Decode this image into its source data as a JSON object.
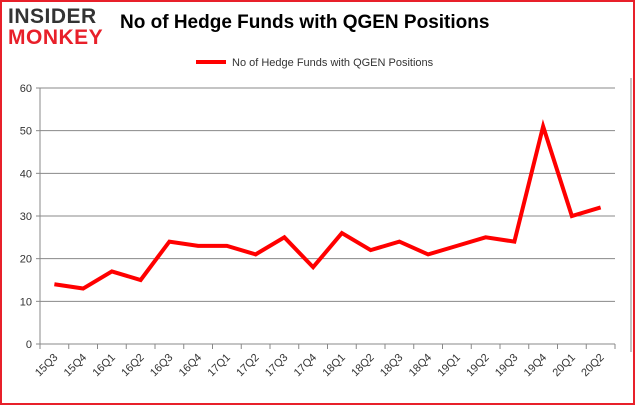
{
  "logo": {
    "line1": "INSIDER",
    "line2": "MONKEY"
  },
  "chart_data": {
    "type": "line",
    "title": "No of Hedge Funds with QGEN Positions",
    "categories": [
      "15Q3",
      "15Q4",
      "16Q1",
      "16Q2",
      "16Q3",
      "16Q4",
      "17Q1",
      "17Q2",
      "17Q3",
      "17Q4",
      "18Q1",
      "18Q2",
      "18Q3",
      "18Q4",
      "19Q1",
      "19Q2",
      "19Q3",
      "19Q4",
      "20Q1",
      "20Q2"
    ],
    "series": [
      {
        "name": "No of Hedge Funds with QGEN Positions",
        "values": [
          14,
          13,
          17,
          15,
          24,
          23,
          23,
          21,
          25,
          18,
          26,
          22,
          24,
          21,
          23,
          25,
          24,
          51,
          30,
          32
        ],
        "color": "#ff0000"
      }
    ],
    "ylim": [
      0,
      60
    ],
    "yticks": [
      0,
      10,
      20,
      30,
      40,
      50,
      60
    ],
    "grid": true,
    "legend": "top-center"
  }
}
